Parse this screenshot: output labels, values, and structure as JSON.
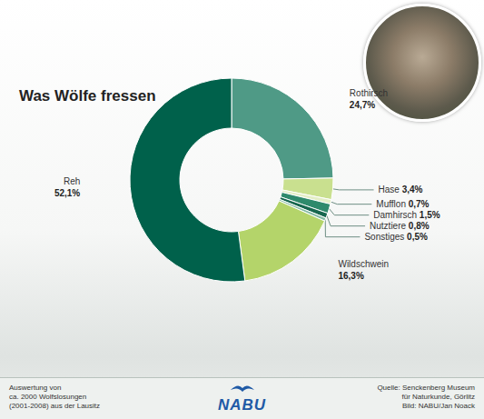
{
  "chart_data": {
    "type": "pie",
    "title": "Was Wölfe fressen",
    "categories": [
      "Rothirsch",
      "Hase",
      "Mufflon",
      "Damhirsch",
      "Nutztiere",
      "Sonstiges",
      "Wildschwein",
      "Reh"
    ],
    "values": [
      24.7,
      3.4,
      0.7,
      1.5,
      0.8,
      0.5,
      16.3,
      52.1
    ],
    "value_labels": [
      "24,7%",
      "3,4%",
      "0,7%",
      "1,5%",
      "0,8%",
      "0,5%",
      "16,3%",
      "52,1%"
    ],
    "colors": [
      "#4f9a86",
      "#c9e08f",
      "#e3eec6",
      "#2f8a6c",
      "#17674f",
      "#86bba5",
      "#b4d46a",
      "#00614b"
    ],
    "data_labels": true,
    "annotations": [
      [
        "Auswertung von",
        "ca. 2000 Wolfslosungen",
        "(2001-2008) aus der Lausitz"
      ],
      [
        "NABU"
      ],
      [
        "Quelle: Senckenberg Museum",
        "für Naturkunde, Görlitz",
        "Bild: NABU/Jan Noack"
      ]
    ]
  }
}
